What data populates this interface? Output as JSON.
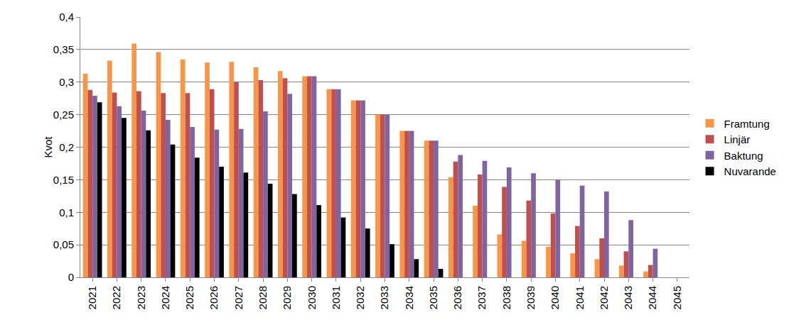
{
  "chart_data": {
    "type": "bar",
    "y_label": "Kvot",
    "categories": [
      "2021",
      "2022",
      "2023",
      "2024",
      "2025",
      "2026",
      "2027",
      "2028",
      "2029",
      "2030",
      "2031",
      "2032",
      "2033",
      "2034",
      "2035",
      "2036",
      "2037",
      "2038",
      "2039",
      "2040",
      "2041",
      "2042",
      "2043",
      "2044",
      "2045"
    ],
    "series": [
      {
        "name": "Framtung",
        "color": "#f79646",
        "values": [
          0.313,
          0.333,
          0.359,
          0.346,
          0.335,
          0.33,
          0.331,
          0.323,
          0.317,
          0.309,
          0.289,
          0.272,
          0.25,
          0.225,
          0.21,
          0.154,
          0.11,
          0.066,
          0.056,
          0.047,
          0.037,
          0.028,
          0.018,
          0.009,
          0
        ]
      },
      {
        "name": "Linjär",
        "color": "#c0504d",
        "values": [
          0.288,
          0.284,
          0.286,
          0.283,
          0.283,
          0.289,
          0.3,
          0.303,
          0.306,
          0.309,
          0.289,
          0.272,
          0.25,
          0.225,
          0.21,
          0.178,
          0.158,
          0.139,
          0.118,
          0.098,
          0.079,
          0.06,
          0.04,
          0.019,
          0
        ]
      },
      {
        "name": "Baktung",
        "color": "#8064a2",
        "values": [
          0.279,
          0.263,
          0.256,
          0.242,
          0.231,
          0.227,
          0.228,
          0.255,
          0.282,
          0.309,
          0.289,
          0.272,
          0.25,
          0.225,
          0.21,
          0.188,
          0.179,
          0.169,
          0.16,
          0.15,
          0.141,
          0.132,
          0.088,
          0.044,
          0
        ]
      },
      {
        "name": "Nuvarande",
        "color": "#000000",
        "values": [
          0.269,
          0.245,
          0.226,
          0.204,
          0.184,
          0.17,
          0.161,
          0.144,
          0.128,
          0.111,
          0.092,
          0.075,
          0.051,
          0.028,
          0.013,
          0,
          0,
          0,
          0,
          0,
          0,
          0,
          0,
          0,
          0
        ]
      }
    ],
    "ylim": [
      0,
      0.4
    ],
    "yticks": [
      0,
      {
        "value": 0.05,
        "label": "0,05"
      },
      {
        "value": 0.1,
        "label": "0,1"
      },
      {
        "value": 0.15,
        "label": "0,15"
      },
      {
        "value": 0.2,
        "label": "0,2"
      },
      {
        "value": 0.25,
        "label": "0,25"
      },
      {
        "value": 0.3,
        "label": "0,3"
      },
      {
        "value": 0.35,
        "label": "0,35"
      },
      {
        "value": 0.4,
        "label": "0,4"
      }
    ],
    "grid": true,
    "legend": "right"
  }
}
